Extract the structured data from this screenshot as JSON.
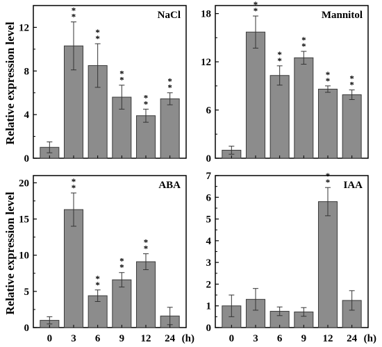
{
  "figure": {
    "ylabel": "Relative expression level",
    "xunit": "(h)"
  },
  "chart_data": [
    {
      "type": "bar",
      "title": "NaCl",
      "categories": [
        "0",
        "3",
        "6",
        "9",
        "12",
        "24"
      ],
      "values": [
        1.0,
        10.3,
        8.5,
        5.6,
        3.9,
        5.45
      ],
      "errors": [
        0.5,
        2.2,
        2.0,
        1.1,
        0.6,
        0.55
      ],
      "significance": [
        "",
        "**",
        "**",
        "**",
        "**",
        "**"
      ],
      "ylim": [
        0,
        14
      ],
      "yticks": [
        0,
        4,
        8,
        12
      ],
      "ytick_labels": [
        "0",
        "4",
        "8",
        "12"
      ]
    },
    {
      "type": "bar",
      "title": "Mannitol",
      "categories": [
        "0",
        "3",
        "6",
        "9",
        "12",
        "24"
      ],
      "values": [
        1.0,
        15.7,
        10.3,
        12.5,
        8.6,
        7.9
      ],
      "errors": [
        0.5,
        2.0,
        1.2,
        0.8,
        0.4,
        0.6
      ],
      "significance": [
        "",
        "**",
        "**",
        "**",
        "**",
        "**"
      ],
      "ylim": [
        0,
        19
      ],
      "yticks": [
        0,
        6,
        12,
        18
      ],
      "ytick_labels": [
        "0",
        "6",
        "12",
        "18"
      ]
    },
    {
      "type": "bar",
      "title": "ABA",
      "categories": [
        "0",
        "3",
        "6",
        "9",
        "12",
        "24"
      ],
      "values": [
        1.0,
        16.3,
        4.4,
        6.6,
        9.1,
        1.6
      ],
      "errors": [
        0.5,
        2.3,
        0.8,
        1.0,
        1.1,
        1.2
      ],
      "significance": [
        "",
        "**",
        "**",
        "**",
        "**",
        ""
      ],
      "ylim": [
        0,
        21
      ],
      "yticks": [
        0,
        5,
        10,
        15,
        20
      ],
      "ytick_labels": [
        "0",
        "5",
        "10",
        "15",
        "20"
      ]
    },
    {
      "type": "bar",
      "title": "IAA",
      "categories": [
        "0",
        "3",
        "6",
        "9",
        "12",
        "24"
      ],
      "values": [
        1.0,
        1.3,
        0.75,
        0.72,
        5.8,
        1.25
      ],
      "errors": [
        0.5,
        0.5,
        0.2,
        0.2,
        0.65,
        0.45
      ],
      "significance": [
        "",
        "",
        "",
        "",
        "**",
        ""
      ],
      "ylim": [
        0,
        7
      ],
      "yticks": [
        0,
        1,
        2,
        3,
        4,
        5,
        6,
        7
      ],
      "ytick_labels": [
        "0",
        "1",
        "2",
        "3",
        "4",
        "5",
        "6",
        "7"
      ]
    }
  ]
}
